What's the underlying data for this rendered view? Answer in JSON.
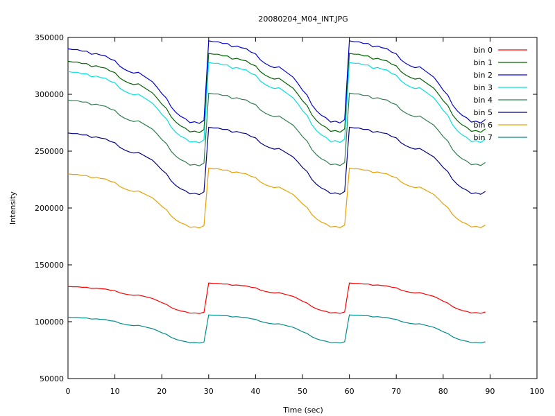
{
  "chart_data": {
    "type": "line",
    "title": "20080204_M04_INT.JPG",
    "xlabel": "Time (sec)",
    "ylabel": "Intensity",
    "xlim": [
      0,
      100
    ],
    "ylim": [
      50000,
      350000
    ],
    "xticks": [
      0,
      10,
      20,
      30,
      40,
      50,
      60,
      70,
      80,
      90,
      100
    ],
    "yticks": [
      50000,
      100000,
      150000,
      200000,
      250000,
      300000,
      350000
    ],
    "grid": false,
    "legend_position": "top-right",
    "cycle": {
      "t": [
        0,
        1,
        2,
        3,
        4,
        5,
        6,
        7,
        8,
        9,
        10,
        11,
        12,
        13,
        14,
        15,
        16,
        17,
        18,
        19,
        20,
        21,
        22,
        23,
        24,
        25,
        26,
        27,
        28,
        29
      ],
      "shape": [
        0,
        0.01,
        0.01,
        0.03,
        0.03,
        0.07,
        0.06,
        0.08,
        0.09,
        0.13,
        0.15,
        0.22,
        0.26,
        0.29,
        0.31,
        0.3,
        0.34,
        0.38,
        0.42,
        0.49,
        0.57,
        0.63,
        0.74,
        0.81,
        0.86,
        0.89,
        0.94,
        0.93,
        0.95,
        0.91
      ]
    },
    "x_end": 92,
    "series": [
      {
        "name": "bin 0",
        "color": "#ff0000",
        "start": 131000,
        "peak": 134000,
        "low": 106000
      },
      {
        "name": "bin 1",
        "color": "#006400",
        "start": 329000,
        "peak": 336000,
        "low": 263000
      },
      {
        "name": "bin 2",
        "color": "#0000cd",
        "start": 340000,
        "peak": 347000,
        "low": 271000
      },
      {
        "name": "bin 3",
        "color": "#00e0e0",
        "start": 320000,
        "peak": 328000,
        "low": 254000
      },
      {
        "name": "bin 4",
        "color": "#2e7d4f",
        "start": 295000,
        "peak": 301000,
        "low": 234000
      },
      {
        "name": "bin 5",
        "color": "#000080",
        "start": 266000,
        "peak": 271000,
        "low": 209000
      },
      {
        "name": "bin 6",
        "color": "#e8a000",
        "start": 230000,
        "peak": 235000,
        "low": 180000
      },
      {
        "name": "bin 7",
        "color": "#008b8b",
        "start": 104000,
        "peak": 106000,
        "low": 80000
      }
    ]
  }
}
